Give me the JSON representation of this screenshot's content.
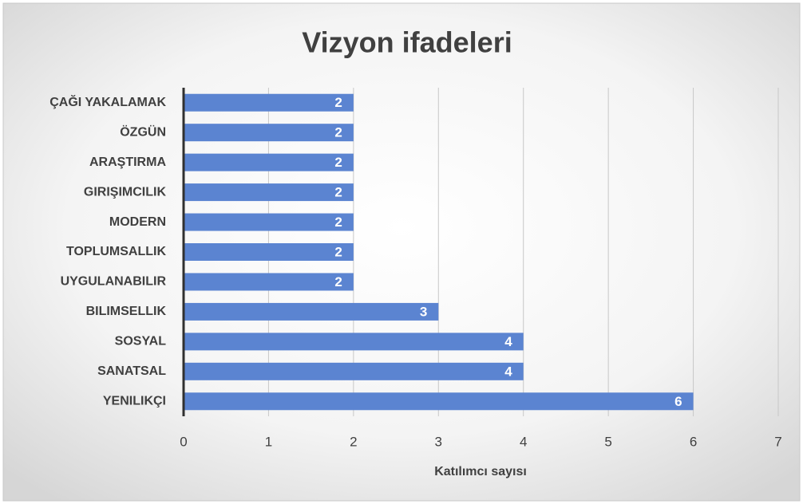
{
  "chart_data": {
    "type": "bar",
    "orientation": "horizontal",
    "title": "Vizyon ifadeleri",
    "x_label": "Katılımcı sayısı",
    "categories": [
      "ÇAĞI YAKALAMAK",
      "ÖZGÜN",
      "ARAŞTIRMA",
      "GIRIŞIMCILIK",
      "MODERN",
      "TOPLUMSALLIK",
      "UYGULANABILIR",
      "BILIMSELLIK",
      "SOSYAL",
      "SANATSAL",
      "YENILIKÇI"
    ],
    "values": [
      2,
      2,
      2,
      2,
      2,
      2,
      2,
      3,
      4,
      4,
      6
    ],
    "color": "#5b84d1",
    "xlim": [
      0,
      7
    ],
    "xticks": [
      0,
      1,
      2,
      3,
      4,
      5,
      6,
      7
    ],
    "grid": true
  }
}
